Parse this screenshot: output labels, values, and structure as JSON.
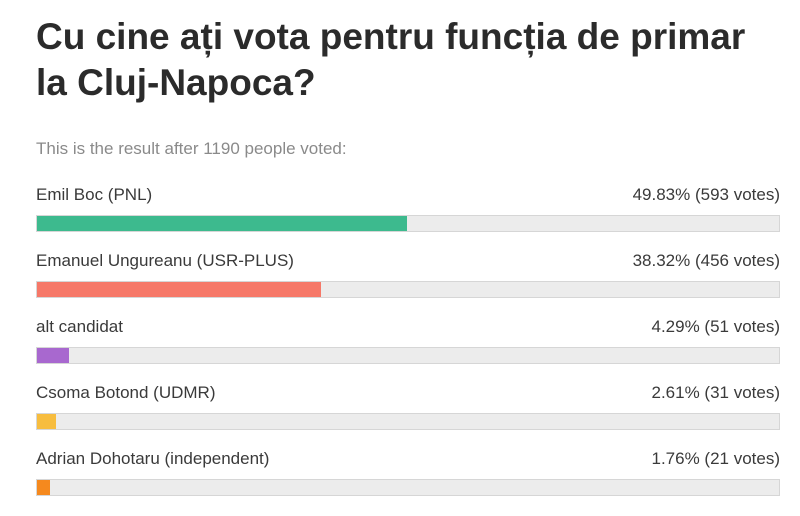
{
  "poll": {
    "title": "Cu cine ați vota pentru funcția de primar la Cluj-Napoca?",
    "subtitle": "This is the result after 1190 people voted:",
    "options": [
      {
        "label": "Emil Boc (PNL)",
        "result": "49.83% (593 votes)",
        "color": "#3dba8e"
      },
      {
        "label": "Emanuel Ungureanu (USR-PLUS)",
        "result": "38.32% (456 votes)",
        "color": "#f67868"
      },
      {
        "label": "alt candidat",
        "result": "4.29% (51 votes)",
        "color": "#a868cf"
      },
      {
        "label": "Csoma Botond (UDMR)",
        "result": "2.61% (31 votes)",
        "color": "#f7bd3f"
      },
      {
        "label": "Adrian Dohotaru (independent)",
        "result": "1.76% (21 votes)",
        "color": "#f5891e"
      }
    ]
  },
  "chart_data": {
    "type": "bar",
    "orientation": "horizontal",
    "title": "Cu cine ați vota pentru funcția de primar la Cluj-Napoca?",
    "subtitle": "This is the result after 1190 people voted:",
    "categories": [
      "Emil Boc (PNL)",
      "Emanuel Ungureanu (USR-PLUS)",
      "alt candidat",
      "Csoma Botond (UDMR)",
      "Adrian Dohotaru (independent)"
    ],
    "values": [
      49.83,
      38.32,
      4.29,
      2.61,
      1.76
    ],
    "votes": [
      593,
      456,
      51,
      31,
      21
    ],
    "colors": [
      "#3dba8e",
      "#f67868",
      "#a868cf",
      "#f7bd3f",
      "#f5891e"
    ],
    "xlim": [
      0,
      100
    ],
    "grid": false
  }
}
